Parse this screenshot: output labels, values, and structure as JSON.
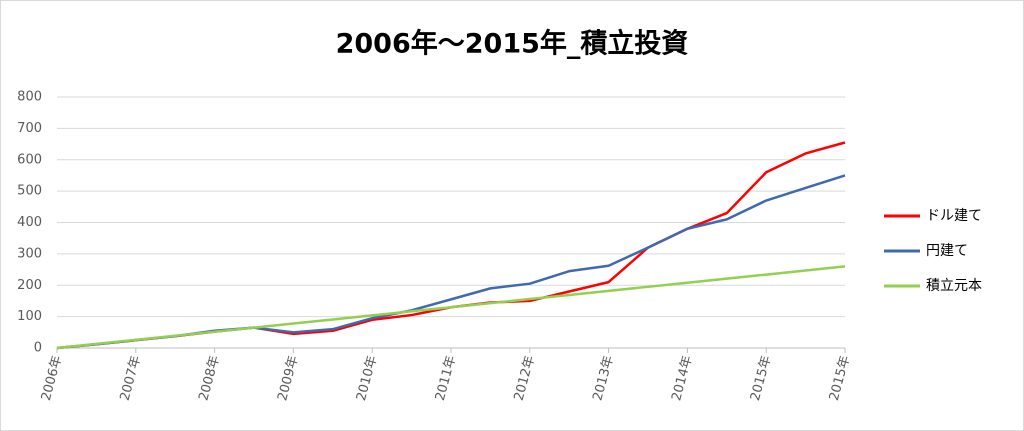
{
  "chart_data": {
    "type": "line",
    "title": "2006年～2015年_積立投資",
    "x": [
      0,
      6,
      12,
      18,
      24,
      30,
      36,
      42,
      48,
      54,
      60,
      66,
      72,
      78,
      84,
      90,
      96,
      102,
      108,
      114,
      120
    ],
    "series": [
      {
        "name": "ドル建て",
        "color": "#ff0000",
        "values": [
          0,
          12,
          25,
          38,
          52,
          65,
          45,
          55,
          90,
          105,
          130,
          145,
          150,
          180,
          210,
          320,
          380,
          430,
          560,
          620,
          655
        ]
      },
      {
        "name": "円建て",
        "color": "#4169b0",
        "values": [
          0,
          12,
          25,
          38,
          55,
          65,
          50,
          60,
          95,
          120,
          155,
          190,
          205,
          245,
          262,
          320,
          380,
          410,
          470,
          510,
          550
        ]
      },
      {
        "name": "積立元本",
        "color": "#92d050",
        "values": [
          0,
          13,
          26,
          39,
          52,
          65,
          78,
          91,
          104,
          117,
          130,
          143,
          156,
          169,
          182,
          195,
          208,
          221,
          234,
          247,
          260
        ]
      }
    ],
    "xlim": [
      0,
      120
    ],
    "xticks": [
      {
        "value": 0,
        "label": "2006年"
      },
      {
        "value": 12,
        "label": "2007年"
      },
      {
        "value": 24,
        "label": "2008年"
      },
      {
        "value": 36,
        "label": "2009年"
      },
      {
        "value": 48,
        "label": "2010年"
      },
      {
        "value": 60,
        "label": "2011年"
      },
      {
        "value": 72,
        "label": "2012年"
      },
      {
        "value": 84,
        "label": "2013年"
      },
      {
        "value": 96,
        "label": "2014年"
      },
      {
        "value": 108,
        "label": "2015年"
      },
      {
        "value": 120,
        "label": "2015年"
      }
    ],
    "ylim": [
      0,
      800
    ],
    "yticks": [
      0,
      100,
      200,
      300,
      400,
      500,
      600,
      700,
      800
    ],
    "grid": true,
    "legend": "right"
  }
}
